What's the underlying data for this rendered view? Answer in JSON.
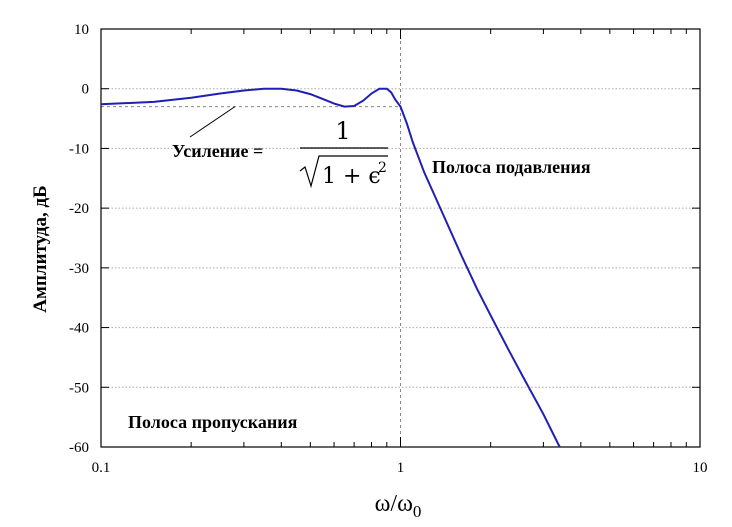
{
  "chart_data": {
    "type": "line",
    "title": "",
    "xlabel": "ω/ω",
    "xlabel_sub": "0",
    "ylabel": "Амплитуда, дБ",
    "xscale": "log",
    "xlim": [
      0.1,
      10
    ],
    "ylim": [
      -60,
      10
    ],
    "x_ticks": [
      0.1,
      1,
      10
    ],
    "x_tick_labels": [
      "0.1",
      "1",
      "10"
    ],
    "y_ticks": [
      10,
      0,
      -10,
      -20,
      -30,
      -40,
      -50,
      -60
    ],
    "y_tick_labels": [
      "10",
      "0",
      "-10",
      "-20",
      "-30",
      "-40",
      "-50",
      "-60"
    ],
    "grid": true,
    "line_color": "#1f1fb4",
    "series": [
      {
        "x": [
          0.1,
          0.15,
          0.2,
          0.25,
          0.3,
          0.35,
          0.4,
          0.45,
          0.5,
          0.55,
          0.6,
          0.65,
          0.7,
          0.75,
          0.8,
          0.85,
          0.9,
          0.93,
          0.96,
          1.0,
          1.05,
          1.1,
          1.2,
          1.4,
          1.6,
          1.8,
          2.0,
          2.3,
          2.6,
          3.0,
          3.4
        ],
        "y": [
          -2.6,
          -2.2,
          -1.5,
          -0.8,
          -0.3,
          0.0,
          0.0,
          -0.3,
          -0.9,
          -1.7,
          -2.5,
          -3.0,
          -2.9,
          -2.0,
          -0.8,
          0.0,
          0.0,
          -0.6,
          -1.8,
          -3.0,
          -5.8,
          -9.0,
          -14.0,
          -21.5,
          -28.0,
          -33.5,
          -38.0,
          -43.8,
          -48.8,
          -54.5,
          -60.0
        ]
      }
    ],
    "reference_lines": {
      "gain_level_db": -3.0,
      "cutoff_x": 1
    },
    "annotations": {
      "gain_label": "Усиление =",
      "formula_numerator": "1",
      "formula_denominator": "1 + ϵ",
      "formula_exponent": "2",
      "stopband_label": "Полоса подавления",
      "passband_label": "Полоса пропускания"
    }
  }
}
